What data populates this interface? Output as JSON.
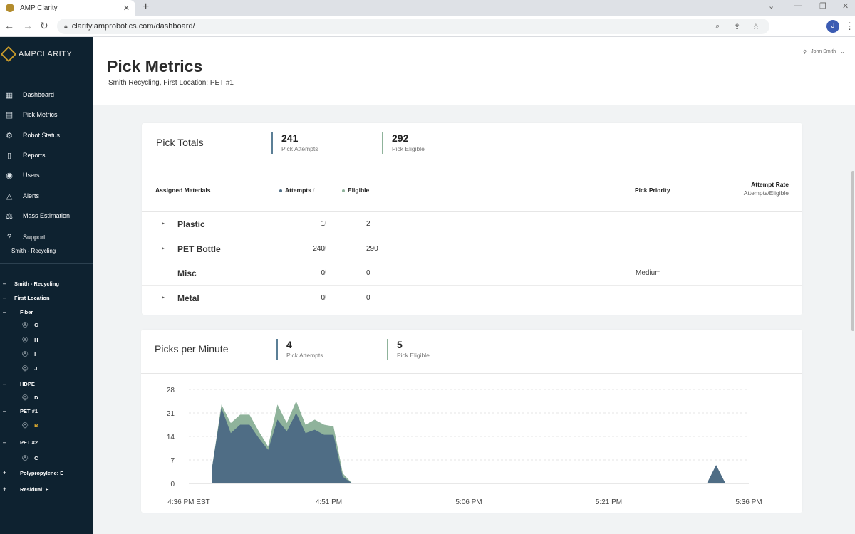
{
  "browser": {
    "tab_title": "AMP Clarity",
    "url": "clarity.amprobotics.com/dashboard/",
    "profile_initial": "J"
  },
  "sidebar": {
    "logo_text": "AMPCLARITY",
    "nav": [
      {
        "label": "Dashboard",
        "icon": "dashboard-icon"
      },
      {
        "label": "Pick Metrics",
        "icon": "chart-icon"
      },
      {
        "label": "Robot Status",
        "icon": "robot-icon"
      },
      {
        "label": "Reports",
        "icon": "document-icon"
      },
      {
        "label": "Users",
        "icon": "users-icon"
      },
      {
        "label": "Alerts",
        "icon": "alert-icon"
      },
      {
        "label": "Mass Estimation",
        "icon": "scale-icon"
      },
      {
        "label": "Support",
        "icon": "help-icon"
      }
    ],
    "support_sub": "Smith - Recycling",
    "tree": {
      "root": "Smith - Recycling",
      "location": "First Location",
      "fiber": "Fiber",
      "fiber_robots": [
        "G",
        "H",
        "I",
        "J"
      ],
      "hdpe": "HDPE",
      "hdpe_robots": [
        "D"
      ],
      "pet1": "PET #1",
      "pet1_robots": [
        "B"
      ],
      "pet2": "PET #2",
      "pet2_robots": [
        "C"
      ],
      "polypropylene": "Polypropylene: E",
      "residual": "Residual: F"
    }
  },
  "header": {
    "title": "Pick Metrics",
    "subtitle": "Smith Recycling, First Location: PET #1",
    "user": "John Smith"
  },
  "pick_totals": {
    "title": "Pick Totals",
    "attempts_value": "241",
    "attempts_label": "Pick Attempts",
    "eligible_value": "292",
    "eligible_label": "Pick Eligible",
    "columns": {
      "materials": "Assigned Materials",
      "attempts": "Attempts",
      "eligible": "Eligible",
      "priority": "Pick Priority",
      "rate": "Attempt Rate",
      "rate_sub": "Attempts/Eligible"
    },
    "rows": [
      {
        "material": "Plastic",
        "attempts": "1",
        "eligible": "2",
        "priority": "",
        "expandable": true
      },
      {
        "material": "PET Bottle",
        "attempts": "240",
        "eligible": "290",
        "priority": "",
        "expandable": true
      },
      {
        "material": "Misc",
        "attempts": "0",
        "eligible": "0",
        "priority": "Medium",
        "expandable": false
      },
      {
        "material": "Metal",
        "attempts": "0",
        "eligible": "0",
        "priority": "",
        "expandable": true
      }
    ]
  },
  "picks_per_minute": {
    "title": "Picks per Minute",
    "attempts_value": "4",
    "attempts_label": "Pick Attempts",
    "eligible_value": "5",
    "eligible_label": "Pick Eligible"
  },
  "colors": {
    "sidebar_bg": "#0e2230",
    "attempts_series": "#4f6d85",
    "eligible_series": "#8fb39b",
    "accent_gold": "#e7b12f"
  },
  "chart_data": {
    "type": "area",
    "xlabel": "",
    "ylabel": "",
    "ylim": [
      0,
      28
    ],
    "yticks": [
      0,
      7,
      14,
      21,
      28
    ],
    "xlim": [
      0,
      60
    ],
    "xticks": [
      {
        "value": 0,
        "label": "4:36 PM EST"
      },
      {
        "value": 15,
        "label": "4:51 PM"
      },
      {
        "value": 30,
        "label": "5:06 PM"
      },
      {
        "value": 45,
        "label": "5:21 PM"
      },
      {
        "value": 60,
        "label": "5:36 PM"
      }
    ],
    "series": [
      {
        "key": "eligible",
        "color": "#8fb39b",
        "x": [
          2.5,
          3.5,
          4.5,
          5.5,
          6.5,
          7.5,
          8.5,
          9.5,
          10.5,
          11.5,
          12.5,
          13.5,
          14.5,
          15.5,
          16.5,
          17.5
        ],
        "y": [
          5,
          23.5,
          18,
          20.5,
          20.5,
          15.5,
          11,
          23.5,
          18,
          24.5,
          17.5,
          19,
          17.5,
          17,
          3,
          0
        ]
      },
      {
        "key": "attempts",
        "color": "#4f6d85",
        "x": [
          2.5,
          3.5,
          4.5,
          5.5,
          6.5,
          7.5,
          8.5,
          9.5,
          10.5,
          11.5,
          12.5,
          13.5,
          14.5,
          15.5,
          16.5,
          17.5,
          55.5,
          56.5,
          57.5
        ],
        "y": [
          5,
          22.5,
          15,
          17.5,
          17.5,
          13.5,
          10,
          19,
          15.5,
          21,
          15,
          16,
          14.5,
          14.5,
          2,
          0,
          0,
          5.5,
          0
        ]
      }
    ]
  }
}
